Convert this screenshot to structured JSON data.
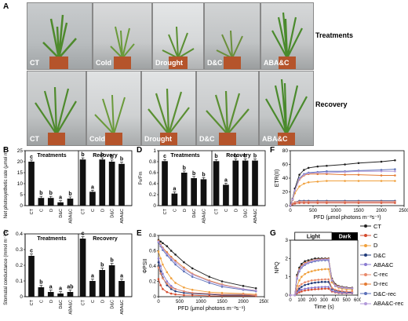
{
  "panel_letters": {
    "A": "A",
    "B": "B",
    "C": "C",
    "D": "D",
    "E": "E",
    "F": "F",
    "G": "G"
  },
  "photos": {
    "row_label_1": "Treatments",
    "row_label_2": "Recovery",
    "top": [
      "CT",
      "Cold",
      "Drought",
      "D&C",
      "ABA&C"
    ],
    "bottom": [
      "CT",
      "Cold",
      "Drought",
      "D&C",
      "ABA&C"
    ]
  },
  "colors": {
    "CT": "#222222",
    "C": "#d44a2c",
    "D": "#f0a03c",
    "DC": "#1f3a7a",
    "ABAC": "#8a7bd1",
    "Crec": "#e8896a",
    "Drec": "#e47a32",
    "DCrec": "#5a6fb8",
    "ABACrec": "#b299d9"
  },
  "chart_data": [
    {
      "type": "bar",
      "panel": "B",
      "ylabel": "Net photosynthetic rate (μmol m⁻² s⁻¹)",
      "groups": [
        "Treatments",
        "Recovery"
      ],
      "categories": [
        "CT",
        "C",
        "D",
        "D&C",
        "ABA&C",
        "CT",
        "C",
        "D",
        "D&C",
        "ABA&C"
      ],
      "values": [
        20,
        3.5,
        3.5,
        1.5,
        3.2,
        21,
        6.3,
        21,
        20,
        19
      ],
      "letters": [
        "c",
        "b",
        "b",
        "a",
        "b",
        "b",
        "a",
        "b",
        "b",
        "b"
      ],
      "ylim": [
        0,
        25
      ],
      "yticks": [
        0,
        5,
        10,
        15,
        20,
        25
      ]
    },
    {
      "type": "bar",
      "panel": "C",
      "ylabel": "Stomatal conductance (mmol m⁻² s⁻¹)",
      "groups": [
        "Treatments",
        "Recovery"
      ],
      "categories": [
        "CT",
        "C",
        "D",
        "D&C",
        "ABA&C",
        "CT",
        "C",
        "D",
        "D&C",
        "ABA&C"
      ],
      "values": [
        0.26,
        0.06,
        0.03,
        0.02,
        0.03,
        0.37,
        0.1,
        0.17,
        0.2,
        0.1
      ],
      "letters": [
        "c",
        "b",
        "a",
        "a",
        "ab",
        "c",
        "a",
        "b",
        "b",
        "a"
      ],
      "ylim": [
        0,
        0.4
      ],
      "yticks": [
        0.0,
        0.1,
        0.2,
        0.3,
        0.4
      ]
    },
    {
      "type": "bar",
      "panel": "D",
      "ylabel": "Fv/Fm",
      "groups": [
        "Treatments",
        "Recovery"
      ],
      "categories": [
        "CT",
        "C",
        "D",
        "D&C",
        "ABA&C",
        "CT",
        "C",
        "D",
        "D&C",
        "ABA&C"
      ],
      "values": [
        0.81,
        0.22,
        0.6,
        0.5,
        0.48,
        0.81,
        0.38,
        0.82,
        0.82,
        0.82
      ],
      "letters": [
        "c",
        "a",
        "b",
        "b",
        "b",
        "b",
        "a",
        "b",
        "b",
        "b"
      ],
      "ylim": [
        0,
        1.0
      ],
      "yticks": [
        0.0,
        0.2,
        0.4,
        0.6,
        0.8,
        1.0
      ]
    },
    {
      "type": "line",
      "panel": "E",
      "xlabel": "PFD (μmol photons m⁻²s⁻¹)",
      "ylabel": "ΦPSII",
      "xlim": [
        0,
        2500
      ],
      "ylim": [
        0,
        0.8
      ],
      "xticks": [
        0,
        500,
        1000,
        1500,
        2000,
        2500
      ],
      "yticks": [
        0.0,
        0.2,
        0.4,
        0.6,
        0.8
      ],
      "x": [
        0,
        50,
        100,
        200,
        300,
        400,
        600,
        800,
        1200,
        1500,
        2000,
        2300
      ],
      "series": [
        {
          "name": "CT",
          "key": "CT",
          "values": [
            0.74,
            0.72,
            0.7,
            0.66,
            0.6,
            0.55,
            0.45,
            0.37,
            0.26,
            0.2,
            0.14,
            0.11
          ]
        },
        {
          "name": "C",
          "key": "C",
          "values": [
            0.23,
            0.15,
            0.1,
            0.06,
            0.04,
            0.03,
            0.02,
            0.02,
            0.01,
            0.01,
            0.01,
            0.01
          ]
        },
        {
          "name": "D",
          "key": "D",
          "values": [
            0.59,
            0.5,
            0.42,
            0.32,
            0.24,
            0.18,
            0.12,
            0.09,
            0.06,
            0.05,
            0.04,
            0.03
          ]
        },
        {
          "name": "D&C",
          "key": "DC",
          "values": [
            0.45,
            0.33,
            0.25,
            0.15,
            0.1,
            0.07,
            0.05,
            0.04,
            0.03,
            0.02,
            0.02,
            0.02
          ]
        },
        {
          "name": "ABA&C",
          "key": "ABAC",
          "values": [
            0.5,
            0.4,
            0.3,
            0.2,
            0.14,
            0.1,
            0.07,
            0.05,
            0.04,
            0.03,
            0.03,
            0.02
          ]
        },
        {
          "name": "C-rec",
          "key": "Crec",
          "values": [
            0.38,
            0.3,
            0.24,
            0.17,
            0.12,
            0.1,
            0.07,
            0.05,
            0.04,
            0.03,
            0.03,
            0.02
          ]
        },
        {
          "name": "D-rec",
          "key": "Drec",
          "values": [
            0.73,
            0.68,
            0.64,
            0.58,
            0.52,
            0.47,
            0.38,
            0.3,
            0.21,
            0.16,
            0.1,
            0.08
          ]
        },
        {
          "name": "D&C-rec",
          "key": "DCrec",
          "values": [
            0.71,
            0.66,
            0.61,
            0.54,
            0.48,
            0.42,
            0.33,
            0.26,
            0.18,
            0.13,
            0.09,
            0.07
          ]
        },
        {
          "name": "ABA&C-rec",
          "key": "ABACrec",
          "values": [
            0.72,
            0.67,
            0.63,
            0.56,
            0.5,
            0.45,
            0.36,
            0.29,
            0.2,
            0.15,
            0.1,
            0.08
          ]
        }
      ]
    },
    {
      "type": "line",
      "panel": "F",
      "xlabel": "PFD (μmol photons m⁻²s⁻¹)",
      "ylabel": "ETR(II)",
      "xlim": [
        0,
        2500
      ],
      "ylim": [
        0,
        80
      ],
      "xticks": [
        0,
        500,
        1000,
        1500,
        2000,
        2500
      ],
      "yticks": [
        0,
        20,
        40,
        60,
        80
      ],
      "x": [
        0,
        50,
        100,
        200,
        300,
        400,
        600,
        800,
        1200,
        1500,
        2000,
        2300
      ],
      "series": [
        {
          "name": "CT",
          "key": "CT",
          "values": [
            0,
            10,
            25,
            45,
            52,
            55,
            57,
            58,
            60,
            62,
            64,
            66
          ]
        },
        {
          "name": "C",
          "key": "C",
          "values": [
            0,
            2,
            3,
            4,
            4,
            4,
            4,
            4,
            4,
            4,
            4,
            4
          ]
        },
        {
          "name": "D",
          "key": "D",
          "values": [
            0,
            8,
            18,
            28,
            32,
            34,
            35,
            36,
            36,
            36,
            36,
            36
          ]
        },
        {
          "name": "D&C",
          "key": "DC",
          "values": [
            0,
            3,
            5,
            7,
            7,
            7,
            7,
            7,
            7,
            7,
            7,
            7
          ]
        },
        {
          "name": "ABA&C",
          "key": "ABAC",
          "values": [
            0,
            3,
            5,
            6,
            6,
            6,
            6,
            6,
            6,
            6,
            6,
            6
          ]
        },
        {
          "name": "C-rec",
          "key": "Crec",
          "values": [
            0,
            3,
            5,
            6,
            6,
            6,
            6,
            6,
            6,
            6,
            6,
            6
          ]
        },
        {
          "name": "D-rec",
          "key": "Drec",
          "values": [
            0,
            9,
            22,
            38,
            44,
            46,
            46,
            46,
            45,
            45,
            44,
            44
          ]
        },
        {
          "name": "D&C-rec",
          "key": "DCrec",
          "values": [
            0,
            9,
            22,
            40,
            46,
            48,
            49,
            50,
            50,
            51,
            52,
            53
          ]
        },
        {
          "name": "ABA&C-rec",
          "key": "ABACrec",
          "values": [
            0,
            9,
            22,
            39,
            45,
            47,
            48,
            48,
            49,
            50,
            50,
            50
          ]
        }
      ]
    },
    {
      "type": "line",
      "panel": "G",
      "xlabel": "Time (s)",
      "ylabel": "NPQ",
      "light_label": "Light",
      "dark_label": "Dark",
      "xlim": [
        0,
        600
      ],
      "ylim": [
        0,
        3.0
      ],
      "xticks": [
        0,
        100,
        200,
        300,
        400,
        500,
        600
      ],
      "yticks": [
        0.0,
        1.0,
        2.0,
        3.0
      ],
      "light_range": [
        40,
        370
      ],
      "x": [
        0,
        40,
        60,
        80,
        100,
        130,
        160,
        190,
        220,
        250,
        280,
        310,
        340,
        370,
        400,
        430,
        460,
        500,
        550
      ],
      "series": [
        {
          "name": "CT",
          "key": "CT",
          "values": [
            0,
            0,
            1.1,
            1.5,
            1.7,
            1.85,
            1.9,
            1.95,
            2.0,
            2.0,
            2.0,
            2.0,
            2.0,
            0.9,
            0.6,
            0.5,
            0.45,
            0.42,
            0.4
          ]
        },
        {
          "name": "C",
          "key": "C",
          "values": [
            0,
            0,
            0.1,
            0.15,
            0.2,
            0.25,
            0.28,
            0.3,
            0.32,
            0.33,
            0.34,
            0.35,
            0.35,
            0.2,
            0.15,
            0.12,
            0.1,
            0.1,
            0.1
          ]
        },
        {
          "name": "D",
          "key": "D",
          "values": [
            0,
            0,
            0.5,
            0.8,
            1.0,
            1.15,
            1.25,
            1.3,
            1.35,
            1.38,
            1.4,
            1.42,
            1.42,
            0.7,
            0.5,
            0.4,
            0.35,
            0.32,
            0.3
          ]
        },
        {
          "name": "D&C",
          "key": "DC",
          "values": [
            0,
            0,
            0.2,
            0.35,
            0.45,
            0.55,
            0.6,
            0.65,
            0.68,
            0.7,
            0.72,
            0.72,
            0.72,
            0.35,
            0.25,
            0.2,
            0.18,
            0.16,
            0.15
          ]
        },
        {
          "name": "ABA&C",
          "key": "ABAC",
          "values": [
            0,
            0,
            0.15,
            0.25,
            0.3,
            0.35,
            0.38,
            0.4,
            0.42,
            0.43,
            0.44,
            0.45,
            0.45,
            0.25,
            0.18,
            0.15,
            0.12,
            0.12,
            0.12
          ]
        },
        {
          "name": "C-rec",
          "key": "Crec",
          "values": [
            0,
            0,
            0.3,
            0.5,
            0.6,
            0.7,
            0.75,
            0.8,
            0.82,
            0.84,
            0.85,
            0.86,
            0.86,
            0.4,
            0.3,
            0.25,
            0.22,
            0.2,
            0.2
          ]
        },
        {
          "name": "D-rec",
          "key": "Drec",
          "values": [
            0,
            0,
            1.0,
            1.4,
            1.6,
            1.75,
            1.82,
            1.88,
            1.92,
            1.95,
            1.96,
            1.97,
            1.98,
            0.85,
            0.55,
            0.48,
            0.42,
            0.4,
            0.38
          ]
        },
        {
          "name": "D&C-rec",
          "key": "DCrec",
          "values": [
            0,
            0,
            0.9,
            1.3,
            1.5,
            1.65,
            1.75,
            1.8,
            1.85,
            1.88,
            1.9,
            1.9,
            1.9,
            0.8,
            0.5,
            0.45,
            0.4,
            0.38,
            0.36
          ]
        },
        {
          "name": "ABA&C-rec",
          "key": "ABACrec",
          "values": [
            0,
            0,
            0.95,
            1.35,
            1.55,
            1.7,
            1.78,
            1.85,
            1.9,
            1.92,
            1.94,
            1.95,
            1.95,
            0.82,
            0.52,
            0.46,
            0.41,
            0.39,
            0.37
          ]
        }
      ]
    }
  ],
  "legend": [
    {
      "name": "CT",
      "key": "CT"
    },
    {
      "name": "C",
      "key": "C"
    },
    {
      "name": "D",
      "key": "D"
    },
    {
      "name": "D&C",
      "key": "DC"
    },
    {
      "name": "ABA&C",
      "key": "ABAC"
    },
    {
      "name": "C-rec",
      "key": "Crec"
    },
    {
      "name": "D-rec",
      "key": "Drec"
    },
    {
      "name": "D&C-rec",
      "key": "DCrec"
    },
    {
      "name": "ABA&C-rec",
      "key": "ABACrec"
    }
  ]
}
